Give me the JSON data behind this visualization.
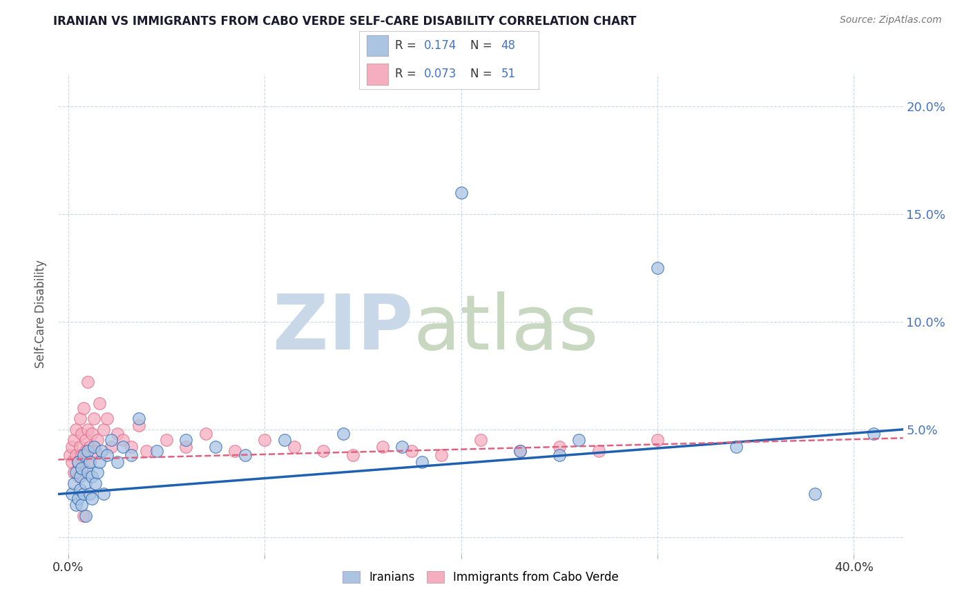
{
  "title": "IRANIAN VS IMMIGRANTS FROM CABO VERDE SELF-CARE DISABILITY CORRELATION CHART",
  "source": "Source: ZipAtlas.com",
  "ylabel": "Self-Care Disability",
  "xlim": [
    -0.005,
    0.425
  ],
  "ylim": [
    -0.008,
    0.215
  ],
  "xtick_positions": [
    0.0,
    0.1,
    0.2,
    0.3,
    0.4
  ],
  "xticklabels": [
    "0.0%",
    "",
    "",
    "",
    "40.0%"
  ],
  "ytick_positions": [
    0.0,
    0.05,
    0.1,
    0.15,
    0.2
  ],
  "ytick_labels": [
    "",
    "5.0%",
    "10.0%",
    "15.0%",
    "20.0%"
  ],
  "iranians_R": 0.174,
  "iranians_N": 48,
  "caboverde_R": 0.073,
  "caboverde_N": 51,
  "iranians_color": "#aac4e2",
  "caboverde_color": "#f5adc0",
  "trend_blue": "#2060b0",
  "trend_pink": "#e06080",
  "background_color": "#ffffff",
  "grid_color": "#c8d8ea",
  "watermark_zip_color": "#c8d8e8",
  "watermark_atlas_color": "#c8d8c0",
  "legend_text_color": "#4472c4",
  "iranians_x": [
    0.002,
    0.003,
    0.004,
    0.004,
    0.005,
    0.005,
    0.006,
    0.006,
    0.007,
    0.007,
    0.008,
    0.008,
    0.009,
    0.009,
    0.01,
    0.01,
    0.011,
    0.011,
    0.012,
    0.012,
    0.013,
    0.014,
    0.015,
    0.016,
    0.017,
    0.018,
    0.02,
    0.022,
    0.025,
    0.028,
    0.032,
    0.036,
    0.045,
    0.06,
    0.075,
    0.09,
    0.11,
    0.14,
    0.17,
    0.2,
    0.23,
    0.26,
    0.3,
    0.34,
    0.25,
    0.18,
    0.38,
    0.41
  ],
  "iranians_y": [
    0.02,
    0.025,
    0.03,
    0.015,
    0.018,
    0.035,
    0.022,
    0.028,
    0.032,
    0.015,
    0.02,
    0.038,
    0.025,
    0.01,
    0.03,
    0.04,
    0.02,
    0.035,
    0.028,
    0.018,
    0.042,
    0.025,
    0.03,
    0.035,
    0.04,
    0.02,
    0.038,
    0.045,
    0.035,
    0.042,
    0.038,
    0.055,
    0.04,
    0.045,
    0.042,
    0.038,
    0.045,
    0.048,
    0.042,
    0.16,
    0.04,
    0.045,
    0.125,
    0.042,
    0.038,
    0.035,
    0.02,
    0.048
  ],
  "caboverde_x": [
    0.001,
    0.002,
    0.002,
    0.003,
    0.003,
    0.004,
    0.004,
    0.005,
    0.005,
    0.006,
    0.006,
    0.007,
    0.007,
    0.008,
    0.008,
    0.009,
    0.009,
    0.01,
    0.01,
    0.011,
    0.012,
    0.013,
    0.014,
    0.015,
    0.016,
    0.018,
    0.02,
    0.022,
    0.025,
    0.028,
    0.032,
    0.036,
    0.04,
    0.05,
    0.06,
    0.07,
    0.085,
    0.1,
    0.115,
    0.13,
    0.145,
    0.16,
    0.175,
    0.19,
    0.21,
    0.23,
    0.25,
    0.27,
    0.3,
    0.01,
    0.008
  ],
  "caboverde_y": [
    0.038,
    0.042,
    0.035,
    0.045,
    0.03,
    0.038,
    0.05,
    0.035,
    0.028,
    0.042,
    0.055,
    0.038,
    0.048,
    0.032,
    0.06,
    0.045,
    0.04,
    0.05,
    0.035,
    0.042,
    0.048,
    0.055,
    0.04,
    0.045,
    0.062,
    0.05,
    0.055,
    0.042,
    0.048,
    0.045,
    0.042,
    0.052,
    0.04,
    0.045,
    0.042,
    0.048,
    0.04,
    0.045,
    0.042,
    0.04,
    0.038,
    0.042,
    0.04,
    0.038,
    0.045,
    0.04,
    0.042,
    0.04,
    0.045,
    0.072,
    0.01
  ],
  "blue_trend_start_y": 0.02,
  "blue_trend_end_y": 0.05,
  "pink_trend_start_y": 0.036,
  "pink_trend_end_y": 0.046
}
